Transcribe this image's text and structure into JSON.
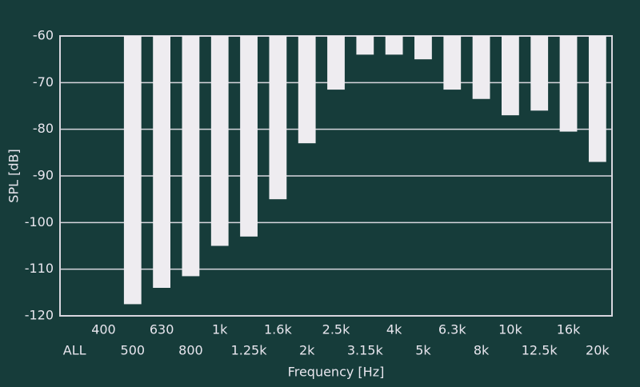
{
  "chart_data": {
    "type": "bar",
    "y_label": "SPL [dB]",
    "x_label": "Frequency [Hz]",
    "categories": [
      "ALL",
      "400",
      "500",
      "630",
      "800",
      "1k",
      "1.25k",
      "1.6k",
      "2k",
      "2.5k",
      "3.15k",
      "4k",
      "5k",
      "6.3k",
      "8k",
      "10k",
      "12.5k",
      "16k",
      "20k"
    ],
    "values": [
      null,
      null,
      -117.5,
      -114,
      -111.5,
      -105,
      -103,
      -95,
      -83,
      -71.5,
      -64,
      -64,
      -65,
      -71.5,
      -73.5,
      -77,
      -76,
      -80.5,
      -87
    ],
    "color": "#eeecf0",
    "ylim": [
      -120,
      -60
    ],
    "yticks": [
      -120,
      -110,
      -100,
      -90,
      -80,
      -70,
      -60
    ],
    "grid": true
  }
}
